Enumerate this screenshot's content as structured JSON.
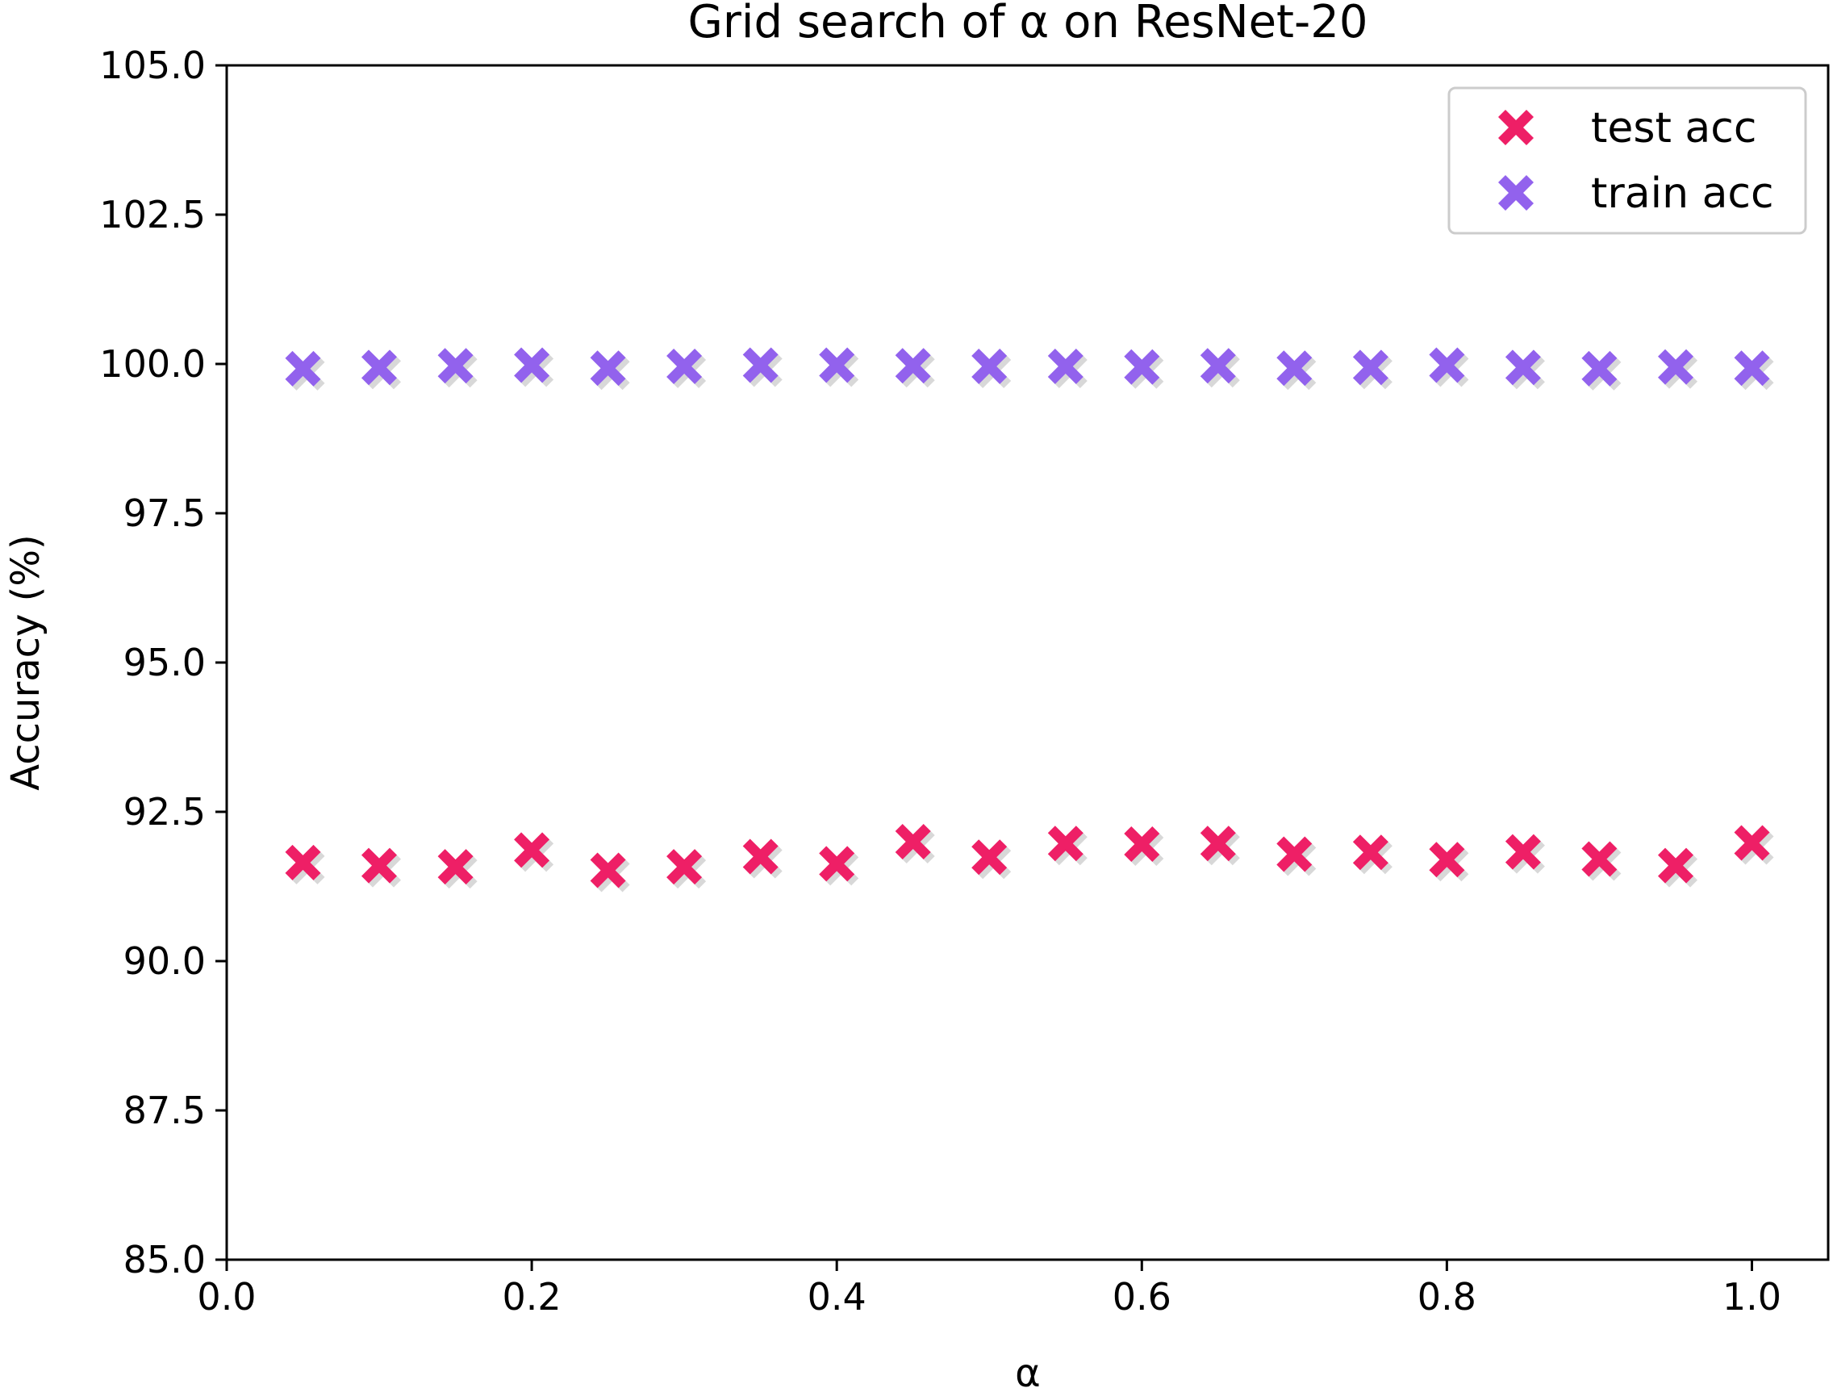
{
  "chart_data": {
    "type": "scatter",
    "title": "Grid search of α on ResNet-20",
    "xlabel": "α",
    "ylabel": "Accuracy (%)",
    "xlim": [
      0.0,
      1.05
    ],
    "ylim": [
      85.0,
      105.0
    ],
    "xticks": [
      0.0,
      0.2,
      0.4,
      0.6,
      0.8,
      1.0
    ],
    "xtick_labels": [
      "0.0",
      "0.2",
      "0.4",
      "0.6",
      "0.8",
      "1.0"
    ],
    "yticks": [
      85.0,
      87.5,
      90.0,
      92.5,
      95.0,
      97.5,
      100.0,
      102.5,
      105.0
    ],
    "ytick_labels": [
      "85.0",
      "87.5",
      "90.0",
      "92.5",
      "95.0",
      "97.5",
      "100.0",
      "102.5",
      "105.0"
    ],
    "grid": false,
    "legend_position": "top-right",
    "marker": "x-filled",
    "x": [
      0.05,
      0.1,
      0.15,
      0.2,
      0.25,
      0.3,
      0.35,
      0.4,
      0.45,
      0.5,
      0.55,
      0.6,
      0.65,
      0.7,
      0.75,
      0.8,
      0.85,
      0.9,
      0.95,
      1.0
    ],
    "series": [
      {
        "name": "test acc",
        "color": "#ee1f66",
        "values": [
          91.65,
          91.6,
          91.58,
          91.86,
          91.52,
          91.58,
          91.75,
          91.63,
          92.0,
          91.74,
          91.97,
          91.96,
          91.97,
          91.79,
          91.82,
          91.7,
          91.83,
          91.71,
          91.6,
          91.98
        ]
      },
      {
        "name": "train acc",
        "color": "#9262ed",
        "values": [
          99.92,
          99.94,
          99.97,
          99.98,
          99.93,
          99.96,
          99.98,
          99.98,
          99.97,
          99.96,
          99.96,
          99.95,
          99.97,
          99.93,
          99.94,
          99.98,
          99.94,
          99.92,
          99.95,
          99.93
        ]
      }
    ]
  }
}
